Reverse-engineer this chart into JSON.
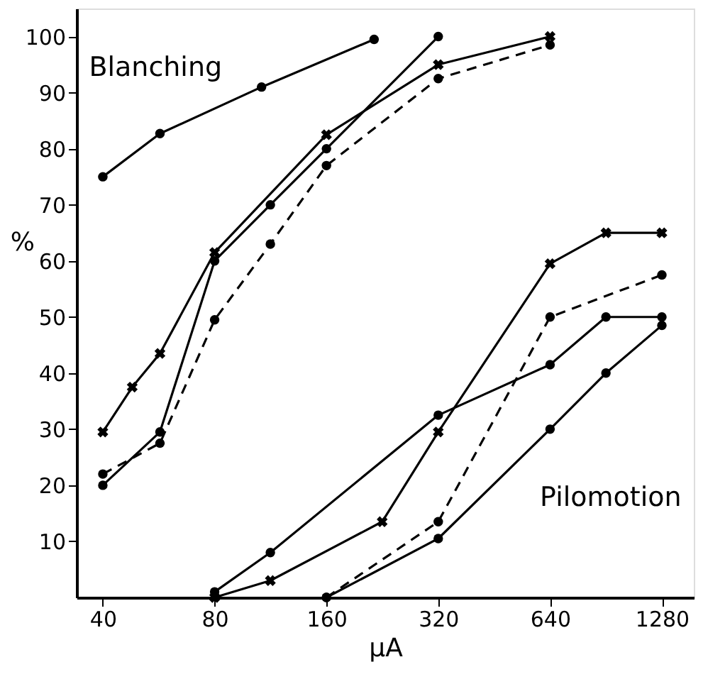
{
  "chart_data": {
    "type": "line",
    "xlabel": "μA",
    "ylabel": "%",
    "log": "x",
    "xlim": [
      34,
      1560
    ],
    "xticks": [
      40,
      80,
      160,
      320,
      640,
      1280
    ],
    "ylim": [
      0,
      105
    ],
    "yticks": [
      10,
      20,
      30,
      40,
      50,
      60,
      70,
      80,
      90,
      100
    ],
    "grid": false,
    "annotations": [
      "Blanching",
      "Pilomotion"
    ],
    "series": [
      {
        "color": "#000000",
        "marker": "circle",
        "line_style": "solid",
        "x": [
          40,
          57,
          107,
          215
        ],
        "values": [
          75,
          82.7,
          91,
          99.5
        ]
      },
      {
        "color": "#000000",
        "marker": "circle",
        "line_style": "solid",
        "x": [
          40,
          57,
          80,
          113,
          160,
          320
        ],
        "values": [
          20,
          29.5,
          60,
          70,
          80,
          100
        ]
      },
      {
        "color": "#000000",
        "marker": "cross",
        "line_style": "solid",
        "x": [
          40,
          48,
          57,
          80,
          160,
          320,
          640
        ],
        "values": [
          29.5,
          37.5,
          43.5,
          61.5,
          82.5,
          95,
          100
        ]
      },
      {
        "color": "#000000",
        "marker": "circle",
        "line_style": "dashed",
        "x": [
          40,
          57,
          80,
          113,
          160,
          320,
          640
        ],
        "values": [
          22,
          27.5,
          49.5,
          63,
          77,
          92.5,
          98.5
        ]
      },
      {
        "color": "#000000",
        "marker": "circle",
        "line_style": "solid",
        "x": [
          80,
          113,
          320,
          640,
          905,
          1280
        ],
        "values": [
          1,
          8,
          32.5,
          41.5,
          50,
          50
        ]
      },
      {
        "color": "#000000",
        "marker": "cross",
        "line_style": "solid",
        "x": [
          80,
          113,
          226,
          320,
          640,
          905,
          1280
        ],
        "values": [
          0,
          3,
          13.5,
          29.5,
          59.5,
          65,
          65
        ]
      },
      {
        "color": "#000000",
        "marker": "circle",
        "line_style": "dashed",
        "x": [
          160,
          320,
          640,
          1280
        ],
        "values": [
          0,
          13.5,
          50,
          57.5
        ]
      },
      {
        "color": "#000000",
        "marker": "circle",
        "line_style": "solid",
        "x": [
          160,
          320,
          640,
          905,
          1280
        ],
        "values": [
          0,
          10.5,
          30,
          40,
          48.5
        ]
      }
    ]
  }
}
